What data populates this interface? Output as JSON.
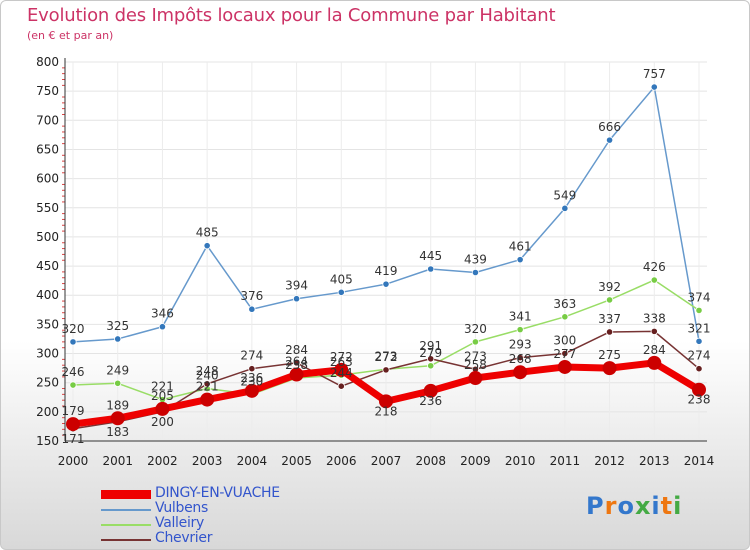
{
  "chart_data": {
    "type": "line",
    "title": "Evolution des Impôts locaux pour la Commune par Habitant",
    "subtitle": "(en € et par an)",
    "xlabel": "",
    "ylabel": "",
    "ylim": [
      150,
      800
    ],
    "yticks": [
      "150",
      "200",
      "250",
      "300",
      "350",
      "400",
      "450",
      "500",
      "550",
      "600",
      "650",
      "700",
      "750",
      "800"
    ],
    "categories": [
      "2000",
      "2001",
      "2002",
      "2003",
      "2004",
      "2005",
      "2006",
      "2007",
      "2008",
      "2009",
      "2010",
      "2011",
      "2012",
      "2013",
      "2014"
    ],
    "grid": true,
    "series": [
      {
        "name": "Vulbens",
        "color": "#6699cc",
        "marker": "#3377bb",
        "values": [
          320,
          325,
          346,
          485,
          376,
          394,
          405,
          419,
          445,
          439,
          461,
          549,
          666,
          757,
          321
        ],
        "labels": [
          "320",
          "325",
          "346",
          "485",
          "376",
          "394",
          "405",
          "419",
          "445",
          "439",
          "461",
          "549",
          "666",
          "757",
          "321"
        ]
      },
      {
        "name": "Valleiry",
        "color": "#99dd66",
        "marker": "#77cc44",
        "values": [
          246,
          249,
          221,
          240,
          230,
          258,
          263,
          273,
          279,
          320,
          341,
          363,
          392,
          426,
          374
        ],
        "labels": [
          "246",
          "249",
          "221",
          "240",
          "230",
          "258",
          "263",
          "273",
          "279",
          "320",
          "341",
          "363",
          "392",
          "426",
          "374"
        ]
      },
      {
        "name": "Chevrier",
        "color": "#773333",
        "marker": "#661f1f",
        "values": [
          171,
          183,
          200,
          248,
          274,
          284,
          244,
          272,
          291,
          273,
          293,
          300,
          337,
          338,
          274
        ],
        "labels": [
          "171",
          "183",
          "200",
          "248",
          "274",
          "284",
          "244",
          "272",
          "291",
          "273",
          "293",
          "300",
          "337",
          "338",
          "274"
        ]
      },
      {
        "name": "DINGY-EN-VUACHE",
        "color": "#ee0000",
        "marker": "#cc0000",
        "values": [
          179,
          189,
          205,
          221,
          236,
          264,
          272,
          218,
          236,
          258,
          268,
          277,
          275,
          284,
          238
        ],
        "labels": [
          "179",
          "189",
          "205",
          "221",
          "236",
          "264",
          "272",
          "218",
          "236",
          "258",
          "268",
          "277",
          "275",
          "284",
          "238"
        ]
      }
    ],
    "legend_position": "bottom-left"
  },
  "legend": [
    {
      "label": "DINGY-EN-VUACHE",
      "color": "#ee0000",
      "thick": true
    },
    {
      "label": "Vulbens",
      "color": "#6699cc",
      "thick": false
    },
    {
      "label": "Valleiry",
      "color": "#99dd66",
      "thick": false
    },
    {
      "label": "Chevrier",
      "color": "#773333",
      "thick": false
    }
  ],
  "logo": {
    "text": "Proxiti",
    "colors": [
      "#3377cc",
      "#ee7711",
      "#3377cc",
      "#44aa44",
      "#3377cc",
      "#ee7711",
      "#44aa44"
    ]
  }
}
